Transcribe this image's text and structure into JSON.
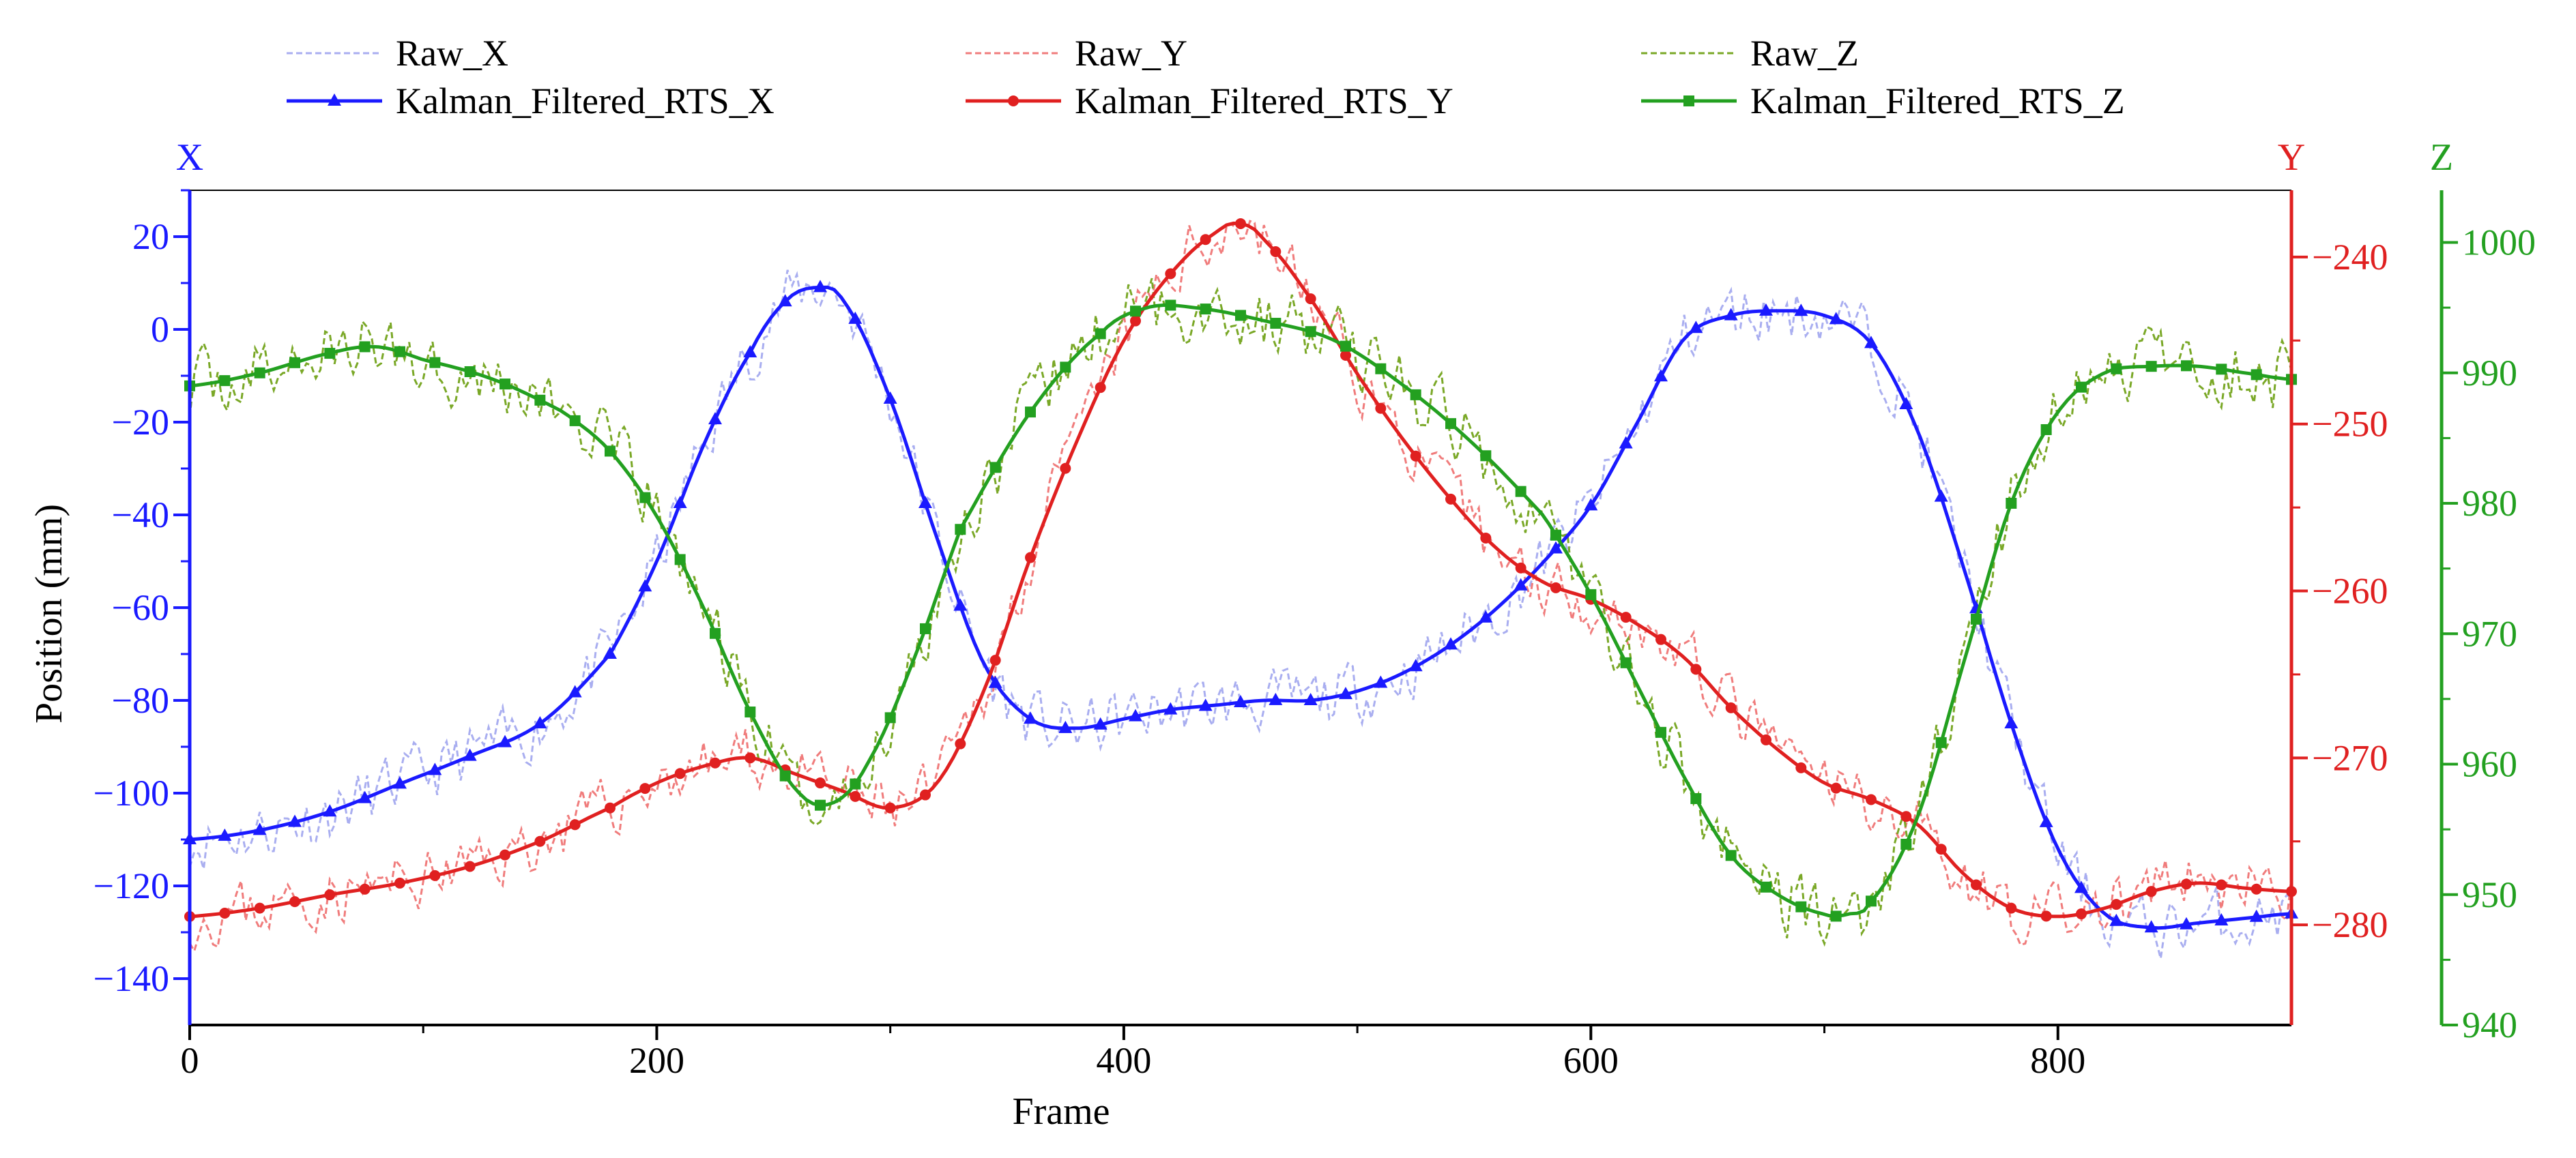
{
  "chart_data": {
    "type": "line",
    "xlabel": "Frame",
    "ylabel": "Position (mm)",
    "x_axis": {
      "label": "Frame",
      "range": [
        0,
        900
      ],
      "ticks": [
        0,
        200,
        400,
        600,
        800
      ]
    },
    "axes": [
      {
        "key": "x",
        "title": "X",
        "side": "left",
        "color": "#1a1aff",
        "range": [
          -150,
          30
        ],
        "ticks": [
          -140,
          -120,
          -100,
          -80,
          -60,
          -40,
          -20,
          0,
          20
        ]
      },
      {
        "key": "y",
        "title": "Y",
        "side": "right",
        "color": "#e02020",
        "range": [
          -286,
          -236
        ],
        "ticks": [
          -280,
          -270,
          -260,
          -250,
          -240
        ]
      },
      {
        "key": "z",
        "title": "Z",
        "side": "right-outer",
        "color": "#23a020",
        "range": [
          940,
          1004
        ],
        "ticks": [
          940,
          950,
          960,
          970,
          980,
          990,
          1000
        ]
      }
    ],
    "legend_position": "top",
    "legend": [
      "Raw_X",
      "Raw_Y",
      "Raw_Z",
      "Kalman_Filtered_RTS_X",
      "Kalman_Filtered_RTS_Y",
      "Kalman_Filtered_RTS_Z"
    ],
    "series": [
      {
        "name": "Kalman_Filtered_RTS_X",
        "axis": "x",
        "color": "#1a1aff",
        "marker": "triangle",
        "x": [
          0,
          30,
          60,
          90,
          120,
          150,
          180,
          200,
          220,
          240,
          255,
          268,
          280,
          300,
          320,
          340,
          360,
          380,
          400,
          420,
          440,
          460,
          480,
          500,
          520,
          540,
          560,
          580,
          600,
          620,
          640,
          660,
          680,
          700,
          720,
          740,
          760,
          780,
          800,
          820,
          840,
          860,
          880,
          900
        ],
        "y": [
          -110,
          -108,
          -104,
          -98,
          -92,
          -85,
          -70,
          -50,
          -25,
          -5,
          6,
          9,
          6,
          -15,
          -45,
          -72,
          -84,
          -86,
          -84,
          -82,
          -81,
          -80,
          -80,
          -78,
          -74,
          -68,
          -60,
          -50,
          -38,
          -20,
          -2,
          3,
          4,
          3,
          -3,
          -22,
          -52,
          -85,
          -112,
          -126,
          -129,
          -128,
          -127,
          -126
        ]
      },
      {
        "name": "Kalman_Filtered_RTS_Y",
        "axis": "y",
        "color": "#e02020",
        "marker": "circle",
        "x": [
          0,
          30,
          60,
          90,
          120,
          150,
          180,
          200,
          220,
          240,
          260,
          280,
          300,
          320,
          340,
          360,
          380,
          400,
          420,
          440,
          450,
          460,
          480,
          500,
          520,
          540,
          560,
          580,
          600,
          620,
          640,
          660,
          680,
          700,
          720,
          740,
          760,
          780,
          800,
          820,
          840,
          860,
          880,
          900
        ],
        "y": [
          -279.5,
          -279,
          -278.2,
          -277.5,
          -276.5,
          -275,
          -273,
          -271.5,
          -270.5,
          -270,
          -271,
          -272,
          -273,
          -271.5,
          -266,
          -258,
          -251,
          -245,
          -241,
          -238.5,
          -238,
          -239,
          -242.5,
          -247,
          -251,
          -254.5,
          -257.5,
          -259.5,
          -260.5,
          -262,
          -264,
          -267,
          -269.5,
          -271.5,
          -272.5,
          -274,
          -277,
          -279,
          -279.5,
          -279,
          -278,
          -277.5,
          -277.8,
          -278
        ]
      },
      {
        "name": "Kalman_Filtered_RTS_Z",
        "axis": "z",
        "color": "#23a020",
        "marker": "square",
        "x": [
          0,
          30,
          60,
          80,
          100,
          130,
          160,
          180,
          200,
          220,
          240,
          260,
          275,
          290,
          310,
          330,
          360,
          390,
          410,
          430,
          460,
          490,
          520,
          550,
          580,
          600,
          620,
          640,
          660,
          680,
          700,
          710,
          720,
          740,
          760,
          780,
          800,
          820,
          840,
          860,
          880,
          900
        ],
        "y": [
          989,
          990,
          991.5,
          992,
          991,
          989.5,
          987,
          984,
          979,
          972,
          964,
          958,
          957,
          960,
          968,
          978,
          987,
          993,
          995,
          995,
          994,
          992.5,
          989,
          984.5,
          979,
          973,
          966,
          959,
          953,
          950,
          948.5,
          948.5,
          949.5,
          956,
          968,
          980,
          987,
          990,
          990.5,
          990.5,
          990,
          989.5
        ]
      },
      {
        "name": "Raw_X",
        "axis": "x",
        "color": "#a9aef0",
        "dashed": true,
        "noise": 6,
        "seed": 11,
        "x": [
          0,
          30,
          60,
          90,
          120,
          150,
          180,
          200,
          220,
          240,
          255,
          268,
          280,
          300,
          320,
          340,
          360,
          380,
          400,
          420,
          440,
          460,
          480,
          500,
          520,
          540,
          560,
          580,
          600,
          620,
          640,
          660,
          680,
          700,
          720,
          740,
          760,
          780,
          800,
          820,
          840,
          860,
          880,
          900
        ],
        "y": [
          -110,
          -108,
          -104,
          -98,
          -92,
          -85,
          -70,
          -50,
          -25,
          -5,
          6,
          9,
          6,
          -15,
          -45,
          -72,
          -84,
          -86,
          -84,
          -82,
          -81,
          -80,
          -80,
          -78,
          -74,
          -68,
          -60,
          -50,
          -38,
          -20,
          -2,
          3,
          4,
          3,
          -3,
          -22,
          -52,
          -85,
          -112,
          -126,
          -129,
          -128,
          -127,
          -126
        ]
      },
      {
        "name": "Raw_Y",
        "axis": "y",
        "color": "#f07c7c",
        "dashed": true,
        "noise": 1.6,
        "seed": 23,
        "x": [
          0,
          30,
          60,
          90,
          120,
          150,
          180,
          200,
          220,
          240,
          260,
          280,
          300,
          320,
          340,
          360,
          380,
          400,
          420,
          440,
          450,
          460,
          480,
          500,
          520,
          540,
          560,
          580,
          600,
          620,
          640,
          660,
          680,
          700,
          720,
          740,
          760,
          780,
          800,
          820,
          840,
          860,
          880,
          900
        ],
        "y": [
          -279.5,
          -279,
          -278.2,
          -277.5,
          -276.5,
          -275,
          -273,
          -271.5,
          -270.5,
          -270,
          -271,
          -272,
          -273,
          -271.5,
          -266,
          -258,
          -251,
          -245,
          -241,
          -238.5,
          -238,
          -239,
          -242.5,
          -247,
          -251,
          -254.5,
          -257.5,
          -259.5,
          -260.5,
          -262,
          -264,
          -267,
          -269.5,
          -271.5,
          -272.5,
          -274,
          -277,
          -279,
          -279.5,
          -279,
          -278,
          -277.5,
          -277.8,
          -278
        ]
      },
      {
        "name": "Raw_Z",
        "axis": "z",
        "color": "#7aa827",
        "dashed": true,
        "noise": 2.4,
        "seed": 37,
        "x": [
          0,
          30,
          60,
          80,
          100,
          130,
          160,
          180,
          200,
          220,
          240,
          260,
          275,
          290,
          310,
          330,
          360,
          390,
          410,
          430,
          460,
          490,
          520,
          550,
          580,
          600,
          620,
          640,
          660,
          680,
          700,
          710,
          720,
          740,
          760,
          780,
          800,
          820,
          840,
          860,
          880,
          900
        ],
        "y": [
          989,
          990,
          991.5,
          992,
          991,
          989.5,
          987,
          984,
          979,
          972,
          964,
          958,
          957,
          960,
          968,
          978,
          987,
          993,
          995,
          995,
          994,
          992.5,
          989,
          984.5,
          979,
          973,
          966,
          959,
          953,
          950,
          948.5,
          948.5,
          949.5,
          956,
          968,
          980,
          987,
          990,
          990.5,
          990.5,
          990,
          989.5
        ]
      }
    ]
  }
}
